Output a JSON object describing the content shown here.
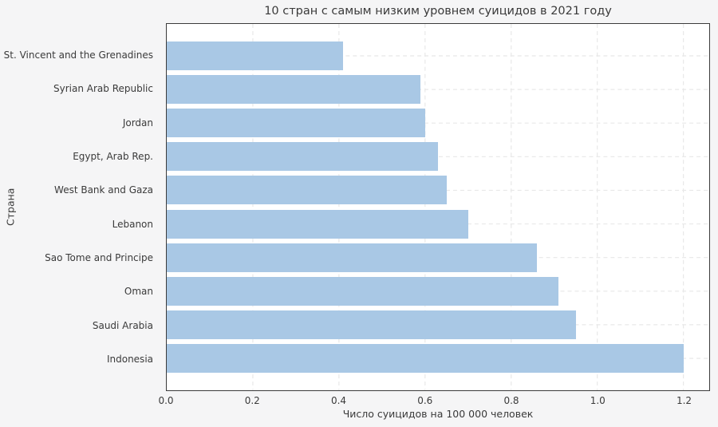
{
  "figure": {
    "background": "#f5f5f6",
    "plot_background": "#ffffff",
    "bar_color": "#a9c8e5",
    "grid_color": "#e8e8e8",
    "spine_color": "#3b3b3b",
    "text_color": "#3a3a3a"
  },
  "chart_data": {
    "type": "bar",
    "orientation": "horizontal",
    "title": "10 стран с самым низким уровнем суицидов в 2021 году",
    "xlabel": "Число суицидов на 100 000 человек",
    "ylabel": "Страна",
    "categories": [
      "St. Vincent and the Grenadines",
      "Syrian Arab Republic",
      "Jordan",
      "Egypt, Arab Rep.",
      "West Bank and Gaza",
      "Lebanon",
      "Sao Tome and Principe",
      "Oman",
      "Saudi Arabia",
      "Indonesia"
    ],
    "values": [
      0.41,
      0.59,
      0.6,
      0.63,
      0.65,
      0.7,
      0.86,
      0.91,
      0.95,
      1.2
    ],
    "xlim": [
      0,
      1.26
    ],
    "xticks": [
      0.0,
      0.2,
      0.4,
      0.6,
      0.8,
      1.0,
      1.2
    ],
    "xtick_labels": [
      "0.0",
      "0.2",
      "0.4",
      "0.6",
      "0.8",
      "1.0",
      "1.2"
    ],
    "grid": true,
    "grid_style": "dashed",
    "legend": null
  }
}
